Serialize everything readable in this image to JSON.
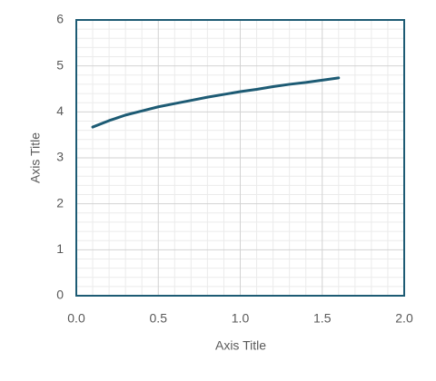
{
  "chart_data": {
    "type": "line",
    "x_label": "Axis Title",
    "y_label": "Axis Title",
    "x": [
      0.1,
      0.2,
      0.3,
      0.4,
      0.5,
      0.6,
      0.7,
      0.8,
      0.9,
      1.0,
      1.1,
      1.2,
      1.3,
      1.4,
      1.5,
      1.6
    ],
    "series": [
      {
        "color": "#1d5b74",
        "values": [
          3.67,
          3.81,
          3.93,
          4.02,
          4.11,
          4.18,
          4.25,
          4.32,
          4.38,
          4.44,
          4.49,
          4.55,
          4.6,
          4.64,
          4.69,
          4.74
        ]
      }
    ],
    "xlim": [
      0,
      2
    ],
    "ylim": [
      0,
      6
    ],
    "xticks": [
      {
        "value": 0,
        "label": "0.0"
      },
      {
        "value": 0.5,
        "label": "0.5"
      },
      {
        "value": 1,
        "label": "1.0"
      },
      {
        "value": 1.5,
        "label": "1.5"
      },
      {
        "value": 2,
        "label": "2.0"
      }
    ],
    "yticks": [
      0,
      1,
      2,
      3,
      4,
      5,
      6
    ],
    "grid": true,
    "minor_grid": true,
    "frame_color": "#1d5b74"
  }
}
